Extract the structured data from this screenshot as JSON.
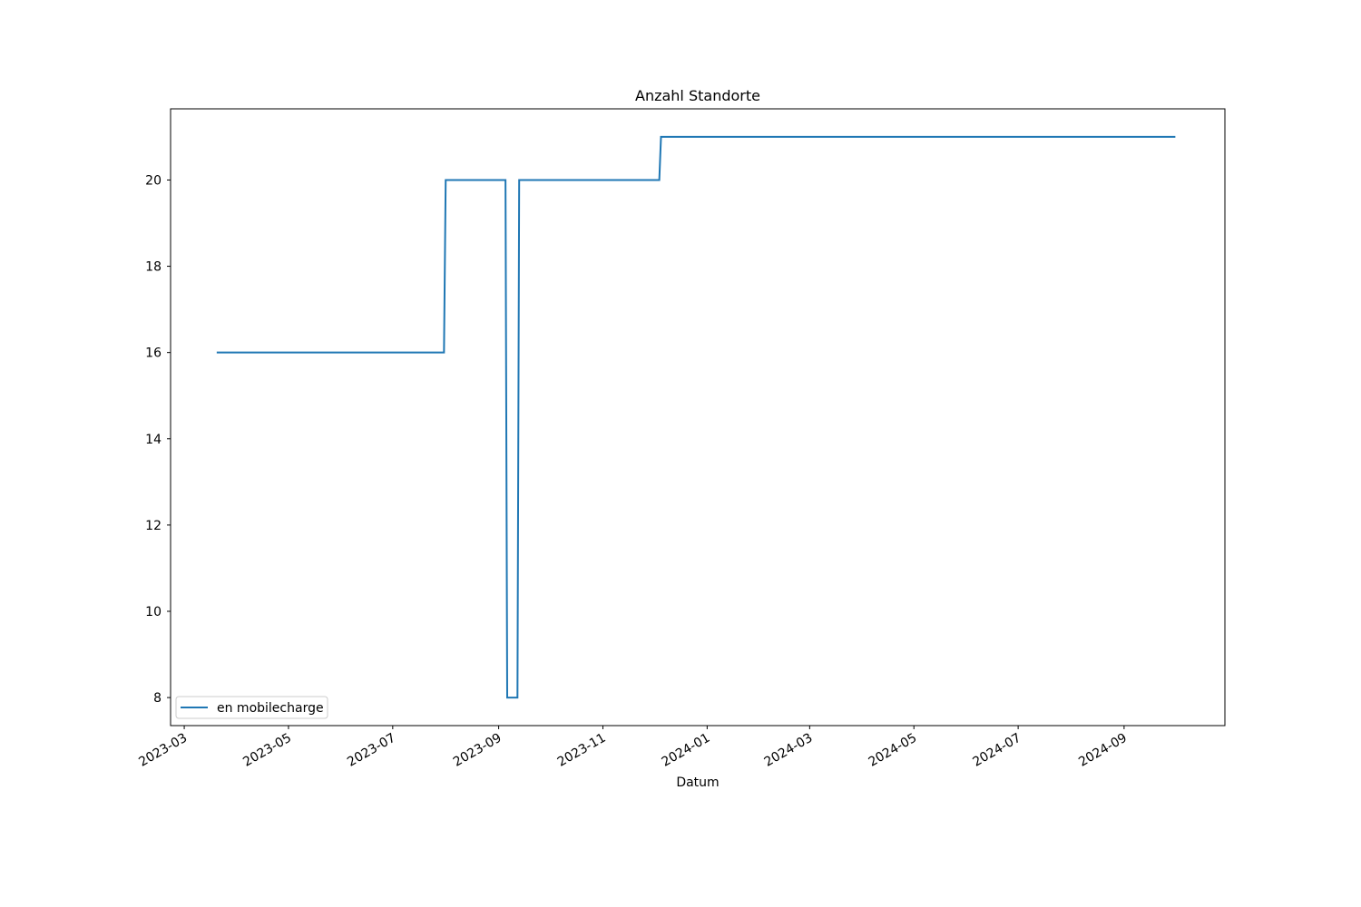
{
  "chart_data": {
    "type": "line",
    "title": "Anzahl Standorte",
    "x_label": "Datum",
    "x": [
      "2023-03-20",
      "2023-07-31",
      "2023-08-01",
      "2023-09-05",
      "2023-09-06",
      "2023-09-12",
      "2023-09-13",
      "2023-12-04",
      "2023-12-05",
      "2024-10-01"
    ],
    "series": [
      {
        "name": "en mobilecharge",
        "color": "#1f77b4",
        "values": [
          16,
          16,
          20,
          20,
          8,
          8,
          20,
          20,
          21,
          21
        ]
      }
    ],
    "xlim": [
      "2023-02-21",
      "2024-10-30"
    ],
    "xticks": [
      {
        "value": "2023-03-01",
        "label": "2023-03"
      },
      {
        "value": "2023-05-01",
        "label": "2023-05"
      },
      {
        "value": "2023-07-01",
        "label": "2023-07"
      },
      {
        "value": "2023-09-01",
        "label": "2023-09"
      },
      {
        "value": "2023-11-01",
        "label": "2023-11"
      },
      {
        "value": "2024-01-01",
        "label": "2024-01"
      },
      {
        "value": "2024-03-01",
        "label": "2024-03"
      },
      {
        "value": "2024-05-01",
        "label": "2024-05"
      },
      {
        "value": "2024-07-01",
        "label": "2024-07"
      },
      {
        "value": "2024-09-01",
        "label": "2024-09"
      }
    ],
    "ylim": [
      7.35,
      21.65
    ],
    "yticks": [
      8,
      10,
      12,
      14,
      16,
      18,
      20
    ],
    "grid": false,
    "legend": "lower left"
  }
}
